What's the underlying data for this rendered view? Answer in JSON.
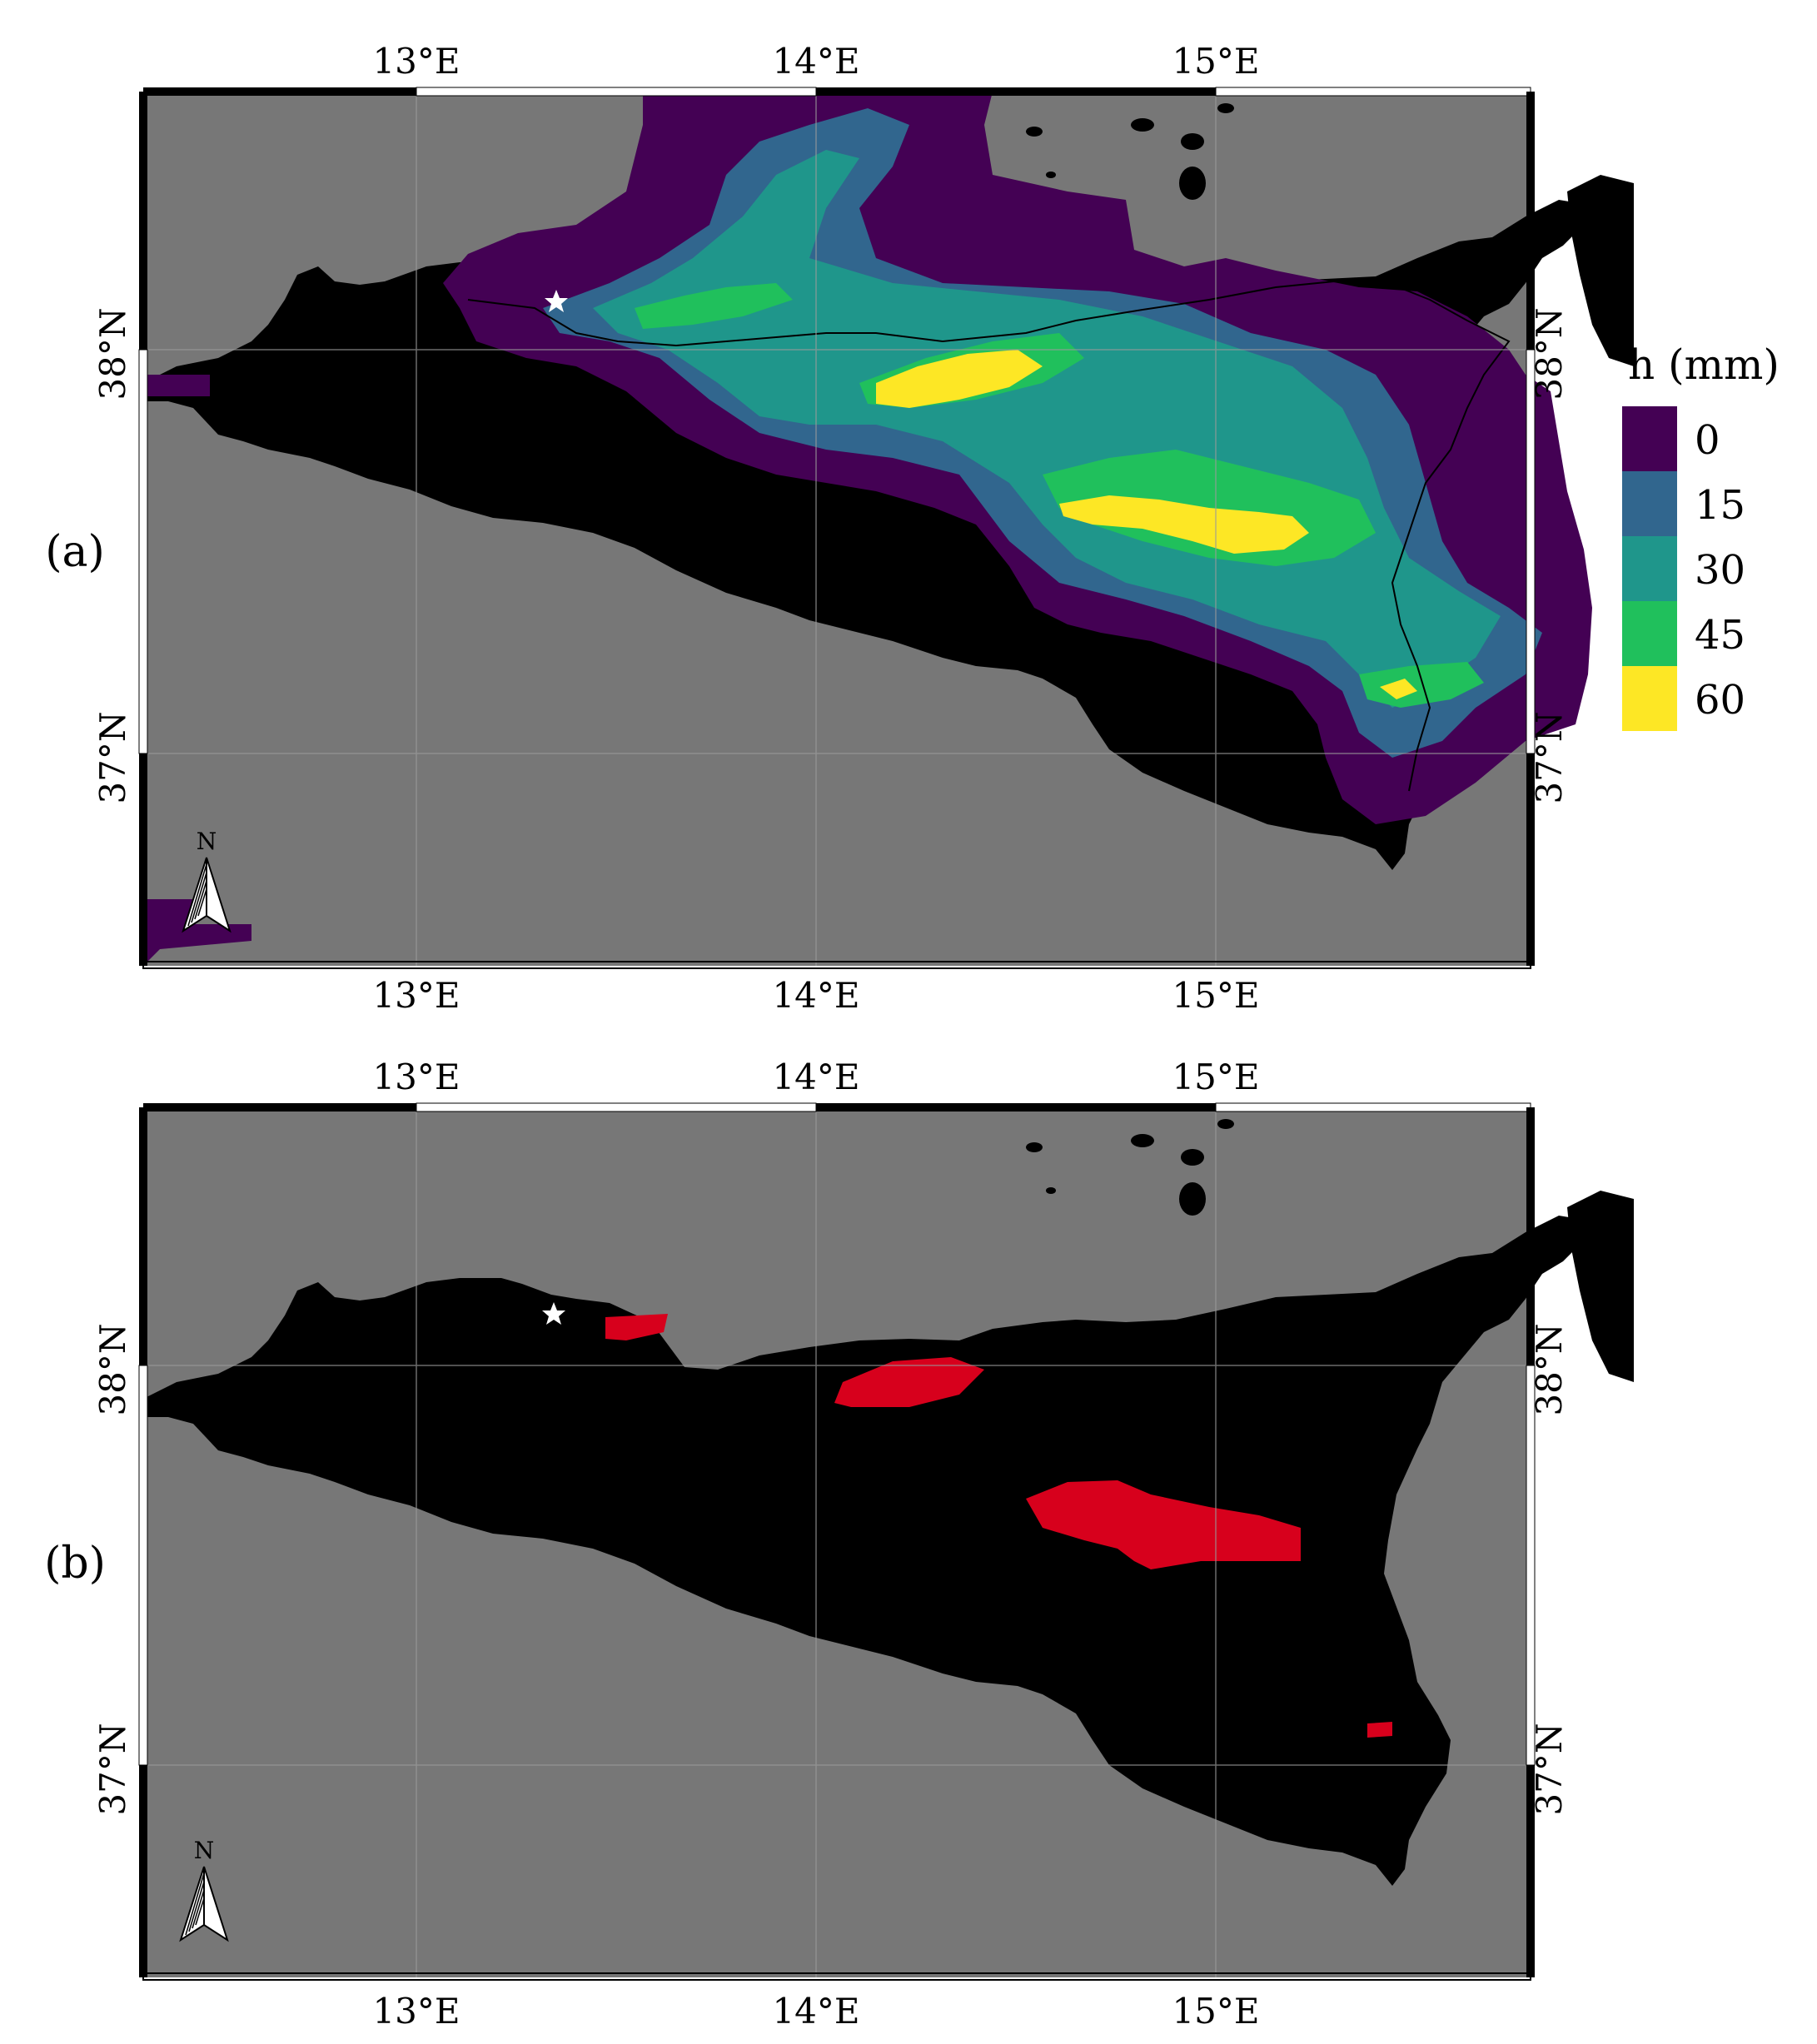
{
  "panels": [
    {
      "id": "a",
      "label": "(a)"
    },
    {
      "id": "b",
      "label": "(b)"
    }
  ],
  "axes": {
    "lon_labels": [
      "13°E",
      "14°E",
      "15°E"
    ],
    "lat_labels": [
      "38°N",
      "37°N"
    ]
  },
  "north_arrow": {
    "label": "N"
  },
  "legend": {
    "title": "h (mm)",
    "entries": [
      {
        "label": "0",
        "color": "#440154"
      },
      {
        "label": "15",
        "color": "#31668e"
      },
      {
        "label": "30",
        "color": "#1f968b"
      },
      {
        "label": "45",
        "color": "#20c05c"
      },
      {
        "label": "60",
        "color": "#fde725"
      }
    ]
  },
  "colors": {
    "sea": "#777777",
    "land": "#000000",
    "highlight": "#d7001c",
    "marker": "#ffffff"
  },
  "markers": [
    {
      "icon": "star-icon"
    }
  ]
}
